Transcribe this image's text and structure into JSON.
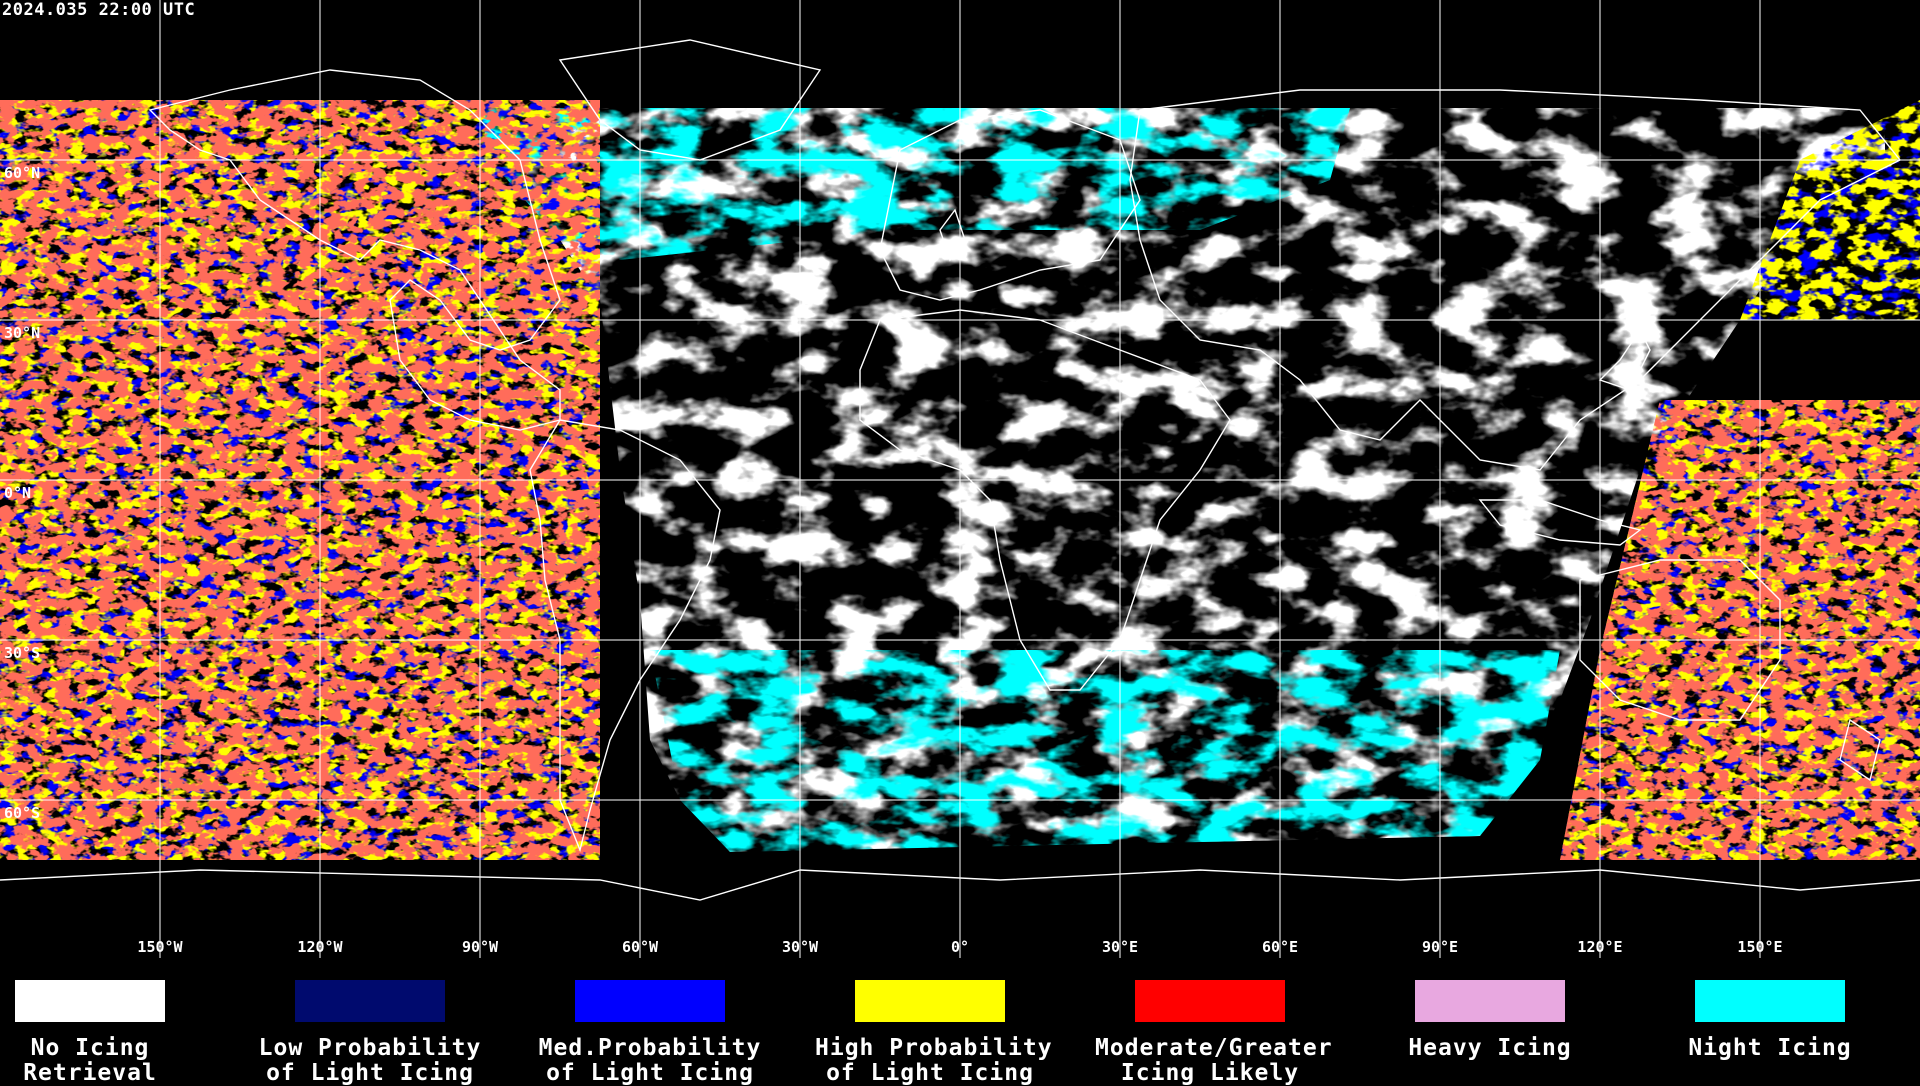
{
  "timestamp": "2024.035 22:00 UTC",
  "latitude_labels": [
    "60°N",
    "30°N",
    "0°N",
    "30°S",
    "60°S"
  ],
  "longitude_labels": [
    "150°W",
    "120°W",
    "90°W",
    "60°W",
    "30°W",
    "0°",
    "30°E",
    "60°E",
    "90°E",
    "120°E",
    "150°E"
  ],
  "legend": [
    {
      "line1": "No Icing",
      "line2": "Retrieval",
      "color": "#ffffff"
    },
    {
      "line1": "Low Probability",
      "line2": "of Light Icing",
      "color": "#000a6e"
    },
    {
      "line1": "Med.Probability",
      "line2": "of Light Icing",
      "color": "#0000ff"
    },
    {
      "line1": "High Probability",
      "line2": "of Light Icing",
      "color": "#ffff00"
    },
    {
      "line1": "Moderate/Greater",
      "line2": "Icing Likely",
      "color": "#ff0000"
    },
    {
      "line1": "Heavy Icing",
      "line2": "",
      "color": "#e8a8e0"
    },
    {
      "line1": "Night Icing",
      "line2": "",
      "color": "#00ffff"
    }
  ]
}
